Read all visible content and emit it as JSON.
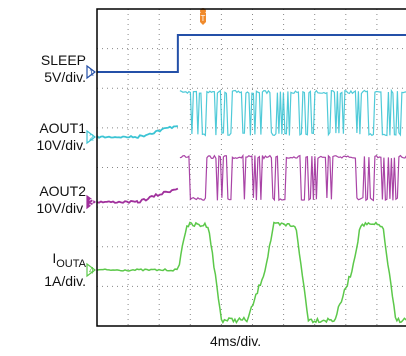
{
  "chart_data": {
    "type": "line",
    "title": "",
    "xlabel": "4ms/div.",
    "x_divisions": 10,
    "y_divisions": 8,
    "grid": true,
    "trigger_marker": "T",
    "channels": [
      {
        "id": "1",
        "name": "SLEEP",
        "scale": "5V/div.",
        "color": "#2450a8",
        "description": "low until ~2.6 div, then steps high"
      },
      {
        "id": "2",
        "name": "AOUT1",
        "scale": "10V/div.",
        "color": "#3cc4d4",
        "description": "rises slowly then switches as PWM pulse bursts"
      },
      {
        "id": "3",
        "name": "AOUT2",
        "scale": "10V/div.",
        "color": "#a0309c",
        "description": "rises slowly then switches as PWM pulse bursts"
      },
      {
        "id": "4",
        "name": "I",
        "name_sub": "OUTA",
        "scale": "1A/div.",
        "color": "#5cc84a",
        "description": "flat, then alternating square-like current waveform"
      }
    ]
  }
}
